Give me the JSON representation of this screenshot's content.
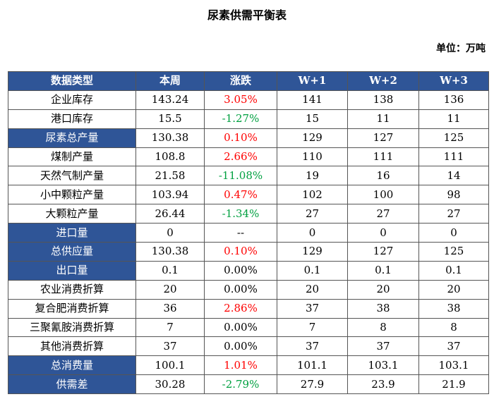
{
  "title": "尿素供需平衡表",
  "unit": "单位：万吨",
  "colors": {
    "header_bg": "#2f5597",
    "up": "#ff0000",
    "down": "#00a040"
  },
  "headers": [
    "数据类型",
    "本周",
    "涨跌",
    "W+1",
    "W+2",
    "W+3"
  ],
  "rows": [
    {
      "name": "企业库存",
      "highlight": false,
      "week": "143.24",
      "change": "3.05%",
      "trend": "up",
      "w1": "141",
      "w2": "138",
      "w3": "136"
    },
    {
      "name": "港口库存",
      "highlight": false,
      "week": "15.5",
      "change": "-1.27%",
      "trend": "down",
      "w1": "15",
      "w2": "11",
      "w3": "11"
    },
    {
      "name": "尿素总产量",
      "highlight": true,
      "week": "130.38",
      "change": "0.10%",
      "trend": "up",
      "w1": "129",
      "w2": "127",
      "w3": "125"
    },
    {
      "name": "煤制产量",
      "highlight": false,
      "week": "108.8",
      "change": "2.66%",
      "trend": "up",
      "w1": "110",
      "w2": "111",
      "w3": "111"
    },
    {
      "name": "天然气制产量",
      "highlight": false,
      "week": "21.58",
      "change": "-11.08%",
      "trend": "down",
      "w1": "19",
      "w2": "16",
      "w3": "14"
    },
    {
      "name": "小中颗粒产量",
      "highlight": false,
      "week": "103.94",
      "change": "0.47%",
      "trend": "up",
      "w1": "102",
      "w2": "100",
      "w3": "98"
    },
    {
      "name": "大颗粒产量",
      "highlight": false,
      "week": "26.44",
      "change": "-1.34%",
      "trend": "down",
      "w1": "27",
      "w2": "27",
      "w3": "27"
    },
    {
      "name": "进口量",
      "highlight": true,
      "week": "0",
      "change": "--",
      "trend": "flat",
      "w1": "0",
      "w2": "0",
      "w3": "0"
    },
    {
      "name": "总供应量",
      "highlight": true,
      "week": "130.38",
      "change": "0.10%",
      "trend": "up",
      "w1": "129",
      "w2": "127",
      "w3": "125"
    },
    {
      "name": "出口量",
      "highlight": true,
      "week": "0.1",
      "change": "0.00%",
      "trend": "flat",
      "w1": "0.1",
      "w2": "0.1",
      "w3": "0.1"
    },
    {
      "name": "农业消费折算",
      "highlight": false,
      "week": "20",
      "change": "0.00%",
      "trend": "flat",
      "w1": "20",
      "w2": "20",
      "w3": "20"
    },
    {
      "name": "复合肥消费折算",
      "highlight": false,
      "week": "36",
      "change": "2.86%",
      "trend": "up",
      "w1": "37",
      "w2": "38",
      "w3": "38"
    },
    {
      "name": "三聚氰胺消费折算",
      "highlight": false,
      "week": "7",
      "change": "0.00%",
      "trend": "flat",
      "w1": "7",
      "w2": "8",
      "w3": "8"
    },
    {
      "name": "其他消费折算",
      "highlight": false,
      "week": "37",
      "change": "0.00%",
      "trend": "flat",
      "w1": "37",
      "w2": "37",
      "w3": "37"
    },
    {
      "name": "总消费量",
      "highlight": true,
      "week": "100.1",
      "change": "1.01%",
      "trend": "up",
      "w1": "101.1",
      "w2": "103.1",
      "w3": "103.1"
    },
    {
      "name": "供需差",
      "highlight": true,
      "week": "30.28",
      "change": "-2.79%",
      "trend": "down",
      "w1": "27.9",
      "w2": "23.9",
      "w3": "21.9"
    }
  ]
}
